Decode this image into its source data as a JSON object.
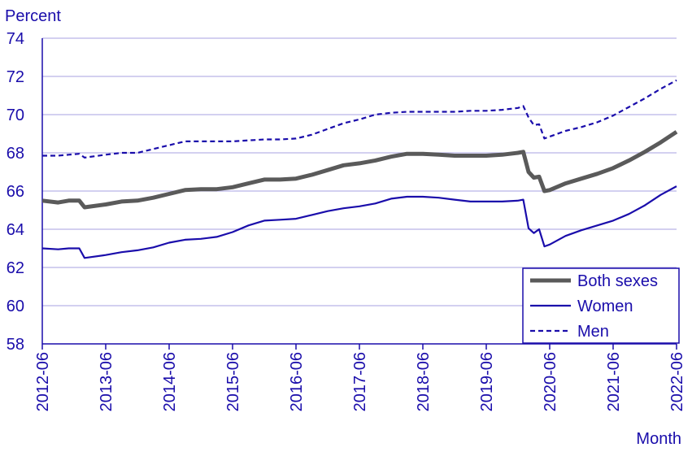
{
  "chart_data": {
    "type": "line",
    "ylabel": "Percent",
    "xlabel": "Month",
    "ylim": [
      58,
      74
    ],
    "yticks": [
      58,
      60,
      62,
      64,
      66,
      68,
      70,
      72,
      74
    ],
    "x_range": [
      "2012-06",
      "2022-06"
    ],
    "xticks": [
      "2012-06",
      "2013-06",
      "2014-06",
      "2015-06",
      "2016-06",
      "2017-06",
      "2018-06",
      "2019-06",
      "2020-06",
      "2021-06",
      "2022-06"
    ],
    "grid": "horizontal",
    "legend_position": "bottom-right",
    "series": [
      {
        "name": "Both sexes",
        "color": "#5a5a5a",
        "style": "solid-thick",
        "points": [
          [
            "2012-06",
            65.5
          ],
          [
            "2012-09",
            65.4
          ],
          [
            "2012-11",
            65.5
          ],
          [
            "2013-01",
            65.5
          ],
          [
            "2013-02",
            65.15
          ],
          [
            "2013-06",
            65.3
          ],
          [
            "2013-09",
            65.45
          ],
          [
            "2013-12",
            65.5
          ],
          [
            "2014-03",
            65.65
          ],
          [
            "2014-06",
            65.85
          ],
          [
            "2014-09",
            66.05
          ],
          [
            "2014-12",
            66.1
          ],
          [
            "2015-03",
            66.1
          ],
          [
            "2015-06",
            66.2
          ],
          [
            "2015-09",
            66.4
          ],
          [
            "2015-12",
            66.6
          ],
          [
            "2016-03",
            66.6
          ],
          [
            "2016-06",
            66.65
          ],
          [
            "2016-09",
            66.85
          ],
          [
            "2016-12",
            67.1
          ],
          [
            "2017-03",
            67.35
          ],
          [
            "2017-06",
            67.45
          ],
          [
            "2017-09",
            67.6
          ],
          [
            "2017-12",
            67.8
          ],
          [
            "2018-03",
            67.95
          ],
          [
            "2018-06",
            67.95
          ],
          [
            "2018-09",
            67.9
          ],
          [
            "2018-12",
            67.85
          ],
          [
            "2019-03",
            67.85
          ],
          [
            "2019-06",
            67.85
          ],
          [
            "2019-09",
            67.9
          ],
          [
            "2019-12",
            68.0
          ],
          [
            "2020-01",
            68.05
          ],
          [
            "2020-02",
            67.0
          ],
          [
            "2020-03",
            66.7
          ],
          [
            "2020-04",
            66.75
          ],
          [
            "2020-05",
            66.0
          ],
          [
            "2020-06",
            66.05
          ],
          [
            "2020-09",
            66.4
          ],
          [
            "2020-12",
            66.65
          ],
          [
            "2021-03",
            66.9
          ],
          [
            "2021-06",
            67.2
          ],
          [
            "2021-09",
            67.6
          ],
          [
            "2021-12",
            68.05
          ],
          [
            "2022-03",
            68.55
          ],
          [
            "2022-06",
            69.1
          ]
        ]
      },
      {
        "name": "Women",
        "color": "#1a0dab",
        "style": "solid",
        "points": [
          [
            "2012-06",
            63.0
          ],
          [
            "2012-09",
            62.95
          ],
          [
            "2012-11",
            63.0
          ],
          [
            "2013-01",
            63.0
          ],
          [
            "2013-02",
            62.5
          ],
          [
            "2013-06",
            62.65
          ],
          [
            "2013-09",
            62.8
          ],
          [
            "2013-12",
            62.9
          ],
          [
            "2014-03",
            63.05
          ],
          [
            "2014-06",
            63.3
          ],
          [
            "2014-09",
            63.45
          ],
          [
            "2014-12",
            63.5
          ],
          [
            "2015-03",
            63.6
          ],
          [
            "2015-06",
            63.85
          ],
          [
            "2015-09",
            64.2
          ],
          [
            "2015-12",
            64.45
          ],
          [
            "2016-03",
            64.5
          ],
          [
            "2016-06",
            64.55
          ],
          [
            "2016-09",
            64.75
          ],
          [
            "2016-12",
            64.95
          ],
          [
            "2017-03",
            65.1
          ],
          [
            "2017-06",
            65.2
          ],
          [
            "2017-09",
            65.35
          ],
          [
            "2017-12",
            65.6
          ],
          [
            "2018-03",
            65.7
          ],
          [
            "2018-06",
            65.7
          ],
          [
            "2018-09",
            65.65
          ],
          [
            "2018-12",
            65.55
          ],
          [
            "2019-03",
            65.45
          ],
          [
            "2019-06",
            65.45
          ],
          [
            "2019-09",
            65.45
          ],
          [
            "2019-12",
            65.5
          ],
          [
            "2020-01",
            65.55
          ],
          [
            "2020-02",
            64.05
          ],
          [
            "2020-03",
            63.8
          ],
          [
            "2020-04",
            64.0
          ],
          [
            "2020-05",
            63.1
          ],
          [
            "2020-06",
            63.2
          ],
          [
            "2020-09",
            63.65
          ],
          [
            "2020-12",
            63.95
          ],
          [
            "2021-03",
            64.2
          ],
          [
            "2021-06",
            64.45
          ],
          [
            "2021-09",
            64.8
          ],
          [
            "2021-12",
            65.25
          ],
          [
            "2022-03",
            65.8
          ],
          [
            "2022-06",
            66.25
          ]
        ]
      },
      {
        "name": "Men",
        "color": "#1a0dab",
        "style": "dashed",
        "points": [
          [
            "2012-06",
            67.85
          ],
          [
            "2012-09",
            67.85
          ],
          [
            "2012-11",
            67.9
          ],
          [
            "2013-01",
            67.95
          ],
          [
            "2013-02",
            67.75
          ],
          [
            "2013-06",
            67.9
          ],
          [
            "2013-09",
            68.0
          ],
          [
            "2013-12",
            68.0
          ],
          [
            "2014-03",
            68.2
          ],
          [
            "2014-06",
            68.4
          ],
          [
            "2014-09",
            68.6
          ],
          [
            "2014-12",
            68.6
          ],
          [
            "2015-03",
            68.6
          ],
          [
            "2015-06",
            68.6
          ],
          [
            "2015-09",
            68.65
          ],
          [
            "2015-12",
            68.7
          ],
          [
            "2016-03",
            68.7
          ],
          [
            "2016-06",
            68.75
          ],
          [
            "2016-09",
            68.95
          ],
          [
            "2016-12",
            69.25
          ],
          [
            "2017-03",
            69.55
          ],
          [
            "2017-06",
            69.75
          ],
          [
            "2017-09",
            70.0
          ],
          [
            "2017-12",
            70.1
          ],
          [
            "2018-03",
            70.15
          ],
          [
            "2018-06",
            70.15
          ],
          [
            "2018-09",
            70.15
          ],
          [
            "2018-12",
            70.15
          ],
          [
            "2019-03",
            70.2
          ],
          [
            "2019-06",
            70.2
          ],
          [
            "2019-09",
            70.25
          ],
          [
            "2019-12",
            70.35
          ],
          [
            "2020-01",
            70.45
          ],
          [
            "2020-02",
            69.85
          ],
          [
            "2020-03",
            69.45
          ],
          [
            "2020-04",
            69.5
          ],
          [
            "2020-05",
            68.75
          ],
          [
            "2020-06",
            68.85
          ],
          [
            "2020-09",
            69.15
          ],
          [
            "2020-12",
            69.35
          ],
          [
            "2021-03",
            69.6
          ],
          [
            "2021-06",
            69.95
          ],
          [
            "2021-09",
            70.4
          ],
          [
            "2021-12",
            70.85
          ],
          [
            "2022-03",
            71.35
          ],
          [
            "2022-06",
            71.8
          ]
        ]
      }
    ]
  }
}
